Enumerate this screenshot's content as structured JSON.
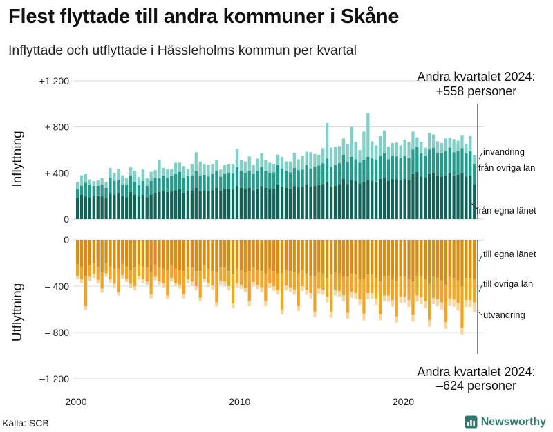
{
  "header": {
    "title": "Flest flyttade till andra kommuner i Skåne",
    "subtitle": "Inflyttade och utflyttade i Hässleholms kommun per kvartal"
  },
  "footer": {
    "source": "Källa: SCB",
    "brand": "Newsworthy"
  },
  "colors": {
    "in_egna": "#0e6457",
    "in_ovriga": "#1f9c8a",
    "in_invandring": "#7fd0c5",
    "out_egna": "#de8a0c",
    "out_ovriga": "#f9a21c",
    "out_utvandring": "#fad49b",
    "grid": "#d9d9d9",
    "brand": "#2f7a6f"
  },
  "chart_data": [
    {
      "type": "bar",
      "stacked": true,
      "ylabel": "Inflyttning",
      "ylim": [
        0,
        1200
      ],
      "yticks": [
        {
          "value": 0,
          "label": "0"
        },
        {
          "value": 400,
          "label": "+  400"
        },
        {
          "value": 800,
          "label": "+  800"
        },
        {
          "value": 1200,
          "label": "+1 200"
        }
      ],
      "x_start": "2000 Q1",
      "x_end": "2024 Q2",
      "xticks": [
        {
          "value": 2000,
          "label": "2000"
        },
        {
          "value": 2010,
          "label": "2010"
        },
        {
          "value": 2020,
          "label": "2020"
        }
      ],
      "annotation": {
        "line1": "Andra kvartalet 2024:",
        "line2": "+558 personer"
      },
      "series": [
        {
          "name": "från egna länet",
          "color": "#0e6457",
          "values": [
            180,
            210,
            195,
            190,
            200,
            205,
            195,
            180,
            225,
            210,
            230,
            200,
            190,
            235,
            210,
            195,
            210,
            190,
            210,
            230,
            235,
            245,
            235,
            240,
            250,
            260,
            230,
            245,
            250,
            270,
            240,
            250,
            240,
            250,
            270,
            245,
            260,
            260,
            255,
            290,
            270,
            260,
            270,
            250,
            265,
            285,
            270,
            260,
            265,
            300,
            280,
            270,
            265,
            285,
            275,
            280,
            300,
            280,
            290,
            295,
            305,
            325,
            280,
            290,
            305,
            350,
            305,
            340,
            330,
            310,
            320,
            340,
            330,
            325,
            350,
            360,
            330,
            350,
            345,
            340,
            350,
            340,
            390,
            410,
            370,
            360,
            390,
            400,
            375,
            370,
            380,
            400,
            380,
            385,
            400,
            370,
            380,
            300
          ]
        },
        {
          "name": "från övriga län",
          "color": "#1f9c8a",
          "values": [
            80,
            80,
            120,
            110,
            90,
            85,
            100,
            90,
            135,
            120,
            110,
            100,
            110,
            140,
            115,
            100,
            120,
            100,
            120,
            130,
            120,
            130,
            120,
            135,
            140,
            150,
            130,
            130,
            130,
            150,
            140,
            135,
            130,
            140,
            150,
            125,
            130,
            140,
            140,
            160,
            150,
            140,
            150,
            140,
            150,
            165,
            150,
            140,
            140,
            170,
            160,
            150,
            140,
            160,
            150,
            150,
            170,
            160,
            165,
            170,
            180,
            200,
            170,
            180,
            180,
            210,
            190,
            200,
            190,
            180,
            190,
            200,
            195,
            190,
            200,
            210,
            190,
            200,
            200,
            190,
            200,
            190,
            215,
            220,
            200,
            190,
            215,
            220,
            200,
            200,
            210,
            220,
            200,
            205,
            215,
            200,
            210,
            180
          ]
        },
        {
          "name": "invandring",
          "color": "#7fd0c5",
          "values": [
            60,
            90,
            75,
            45,
            40,
            45,
            60,
            55,
            85,
            70,
            95,
            80,
            55,
            75,
            90,
            70,
            100,
            65,
            80,
            65,
            160,
            70,
            80,
            60,
            100,
            80,
            100,
            60,
            100,
            160,
            120,
            95,
            100,
            90,
            90,
            60,
            80,
            80,
            85,
            160,
            90,
            100,
            125,
            80,
            110,
            120,
            90,
            90,
            75,
            90,
            100,
            80,
            95,
            130,
            95,
            120,
            115,
            140,
            110,
            95,
            130,
            310,
            170,
            160,
            150,
            140,
            160,
            260,
            150,
            110,
            250,
            380,
            150,
            125,
            170,
            200,
            110,
            110,
            120,
            110,
            140,
            140,
            155,
            80,
            100,
            70,
            145,
            115,
            100,
            90,
            110,
            85,
            115,
            90,
            110,
            85,
            130,
            78
          ]
        }
      ]
    },
    {
      "type": "bar",
      "stacked": true,
      "ylabel": "Utflyttning",
      "ylim": [
        -1200,
        0
      ],
      "yticks": [
        {
          "value": 0,
          "label": "0"
        },
        {
          "value": -400,
          "label": "–  400"
        },
        {
          "value": -800,
          "label": "–  800"
        },
        {
          "value": -1200,
          "label": "–1 200"
        }
      ],
      "annotation": {
        "line1": "Andra kvartalet 2024:",
        "line2": "–624 personer"
      },
      "series": [
        {
          "name": "till egna länet",
          "color": "#de8a0c",
          "values": [
            -210,
            -230,
            -320,
            -220,
            -200,
            -235,
            -280,
            -200,
            -230,
            -250,
            -250,
            -210,
            -230,
            -260,
            -240,
            -215,
            -230,
            -240,
            -280,
            -215,
            -240,
            -250,
            -260,
            -220,
            -250,
            -260,
            -270,
            -230,
            -240,
            -270,
            -270,
            -220,
            -250,
            -270,
            -280,
            -240,
            -240,
            -270,
            -300,
            -250,
            -260,
            -280,
            -270,
            -240,
            -260,
            -270,
            -290,
            -250,
            -270,
            -290,
            -290,
            -260,
            -270,
            -280,
            -290,
            -260,
            -290,
            -310,
            -320,
            -280,
            -290,
            -330,
            -300,
            -285,
            -290,
            -320,
            -320,
            -290,
            -300,
            -340,
            -340,
            -300,
            -300,
            -330,
            -360,
            -310,
            -310,
            -340,
            -360,
            -320,
            -320,
            -340,
            -360,
            -310,
            -320,
            -340,
            -380,
            -320,
            -330,
            -350,
            -390,
            -320,
            -330,
            -350,
            -400,
            -330,
            -330,
            -340
          ]
        },
        {
          "name": "till övriga län",
          "color": "#f9a21c",
          "values": [
            -100,
            -110,
            -250,
            -100,
            -95,
            -110,
            -140,
            -90,
            -110,
            -130,
            -200,
            -95,
            -105,
            -120,
            -160,
            -100,
            -110,
            -120,
            -190,
            -105,
            -120,
            -125,
            -220,
            -110,
            -120,
            -125,
            -200,
            -110,
            -120,
            -130,
            -230,
            -115,
            -120,
            -125,
            -260,
            -115,
            -120,
            -130,
            -250,
            -125,
            -130,
            -135,
            -260,
            -125,
            -130,
            -140,
            -240,
            -125,
            -130,
            -140,
            -310,
            -135,
            -140,
            -150,
            -280,
            -140,
            -140,
            -150,
            -300,
            -140,
            -140,
            -160,
            -320,
            -150,
            -150,
            -160,
            -310,
            -160,
            -160,
            -170,
            -300,
            -160,
            -160,
            -175,
            -280,
            -170,
            -170,
            -180,
            -300,
            -170,
            -170,
            -180,
            -290,
            -170,
            -175,
            -190,
            -310,
            -180,
            -180,
            -190,
            -320,
            -185,
            -185,
            -195,
            -360,
            -190,
            -190,
            -200
          ]
        },
        {
          "name": "utvandring",
          "color": "#fad49b",
          "values": [
            -30,
            -35,
            -35,
            -35,
            -35,
            -30,
            -35,
            -30,
            -30,
            -35,
            -30,
            -30,
            -30,
            -35,
            -35,
            -30,
            -35,
            -30,
            -35,
            -30,
            -30,
            -35,
            -30,
            -30,
            -30,
            -35,
            -35,
            -30,
            -35,
            -35,
            -30,
            -30,
            -35,
            -35,
            -35,
            -35,
            -35,
            -35,
            -40,
            -35,
            -35,
            -35,
            -40,
            -35,
            -35,
            -40,
            -40,
            -40,
            -40,
            -40,
            -45,
            -40,
            -40,
            -45,
            -45,
            -40,
            -45,
            -45,
            -45,
            -45,
            -45,
            -50,
            -50,
            -45,
            -50,
            -50,
            -50,
            -50,
            -50,
            -50,
            -55,
            -50,
            -50,
            -55,
            -55,
            -50,
            -55,
            -55,
            -55,
            -55,
            -55,
            -60,
            -55,
            -55,
            -60,
            -60,
            -60,
            -55,
            -60,
            -60,
            -60,
            -60,
            -60,
            -65,
            -60,
            -60,
            -60,
            -84
          ]
        }
      ]
    }
  ]
}
